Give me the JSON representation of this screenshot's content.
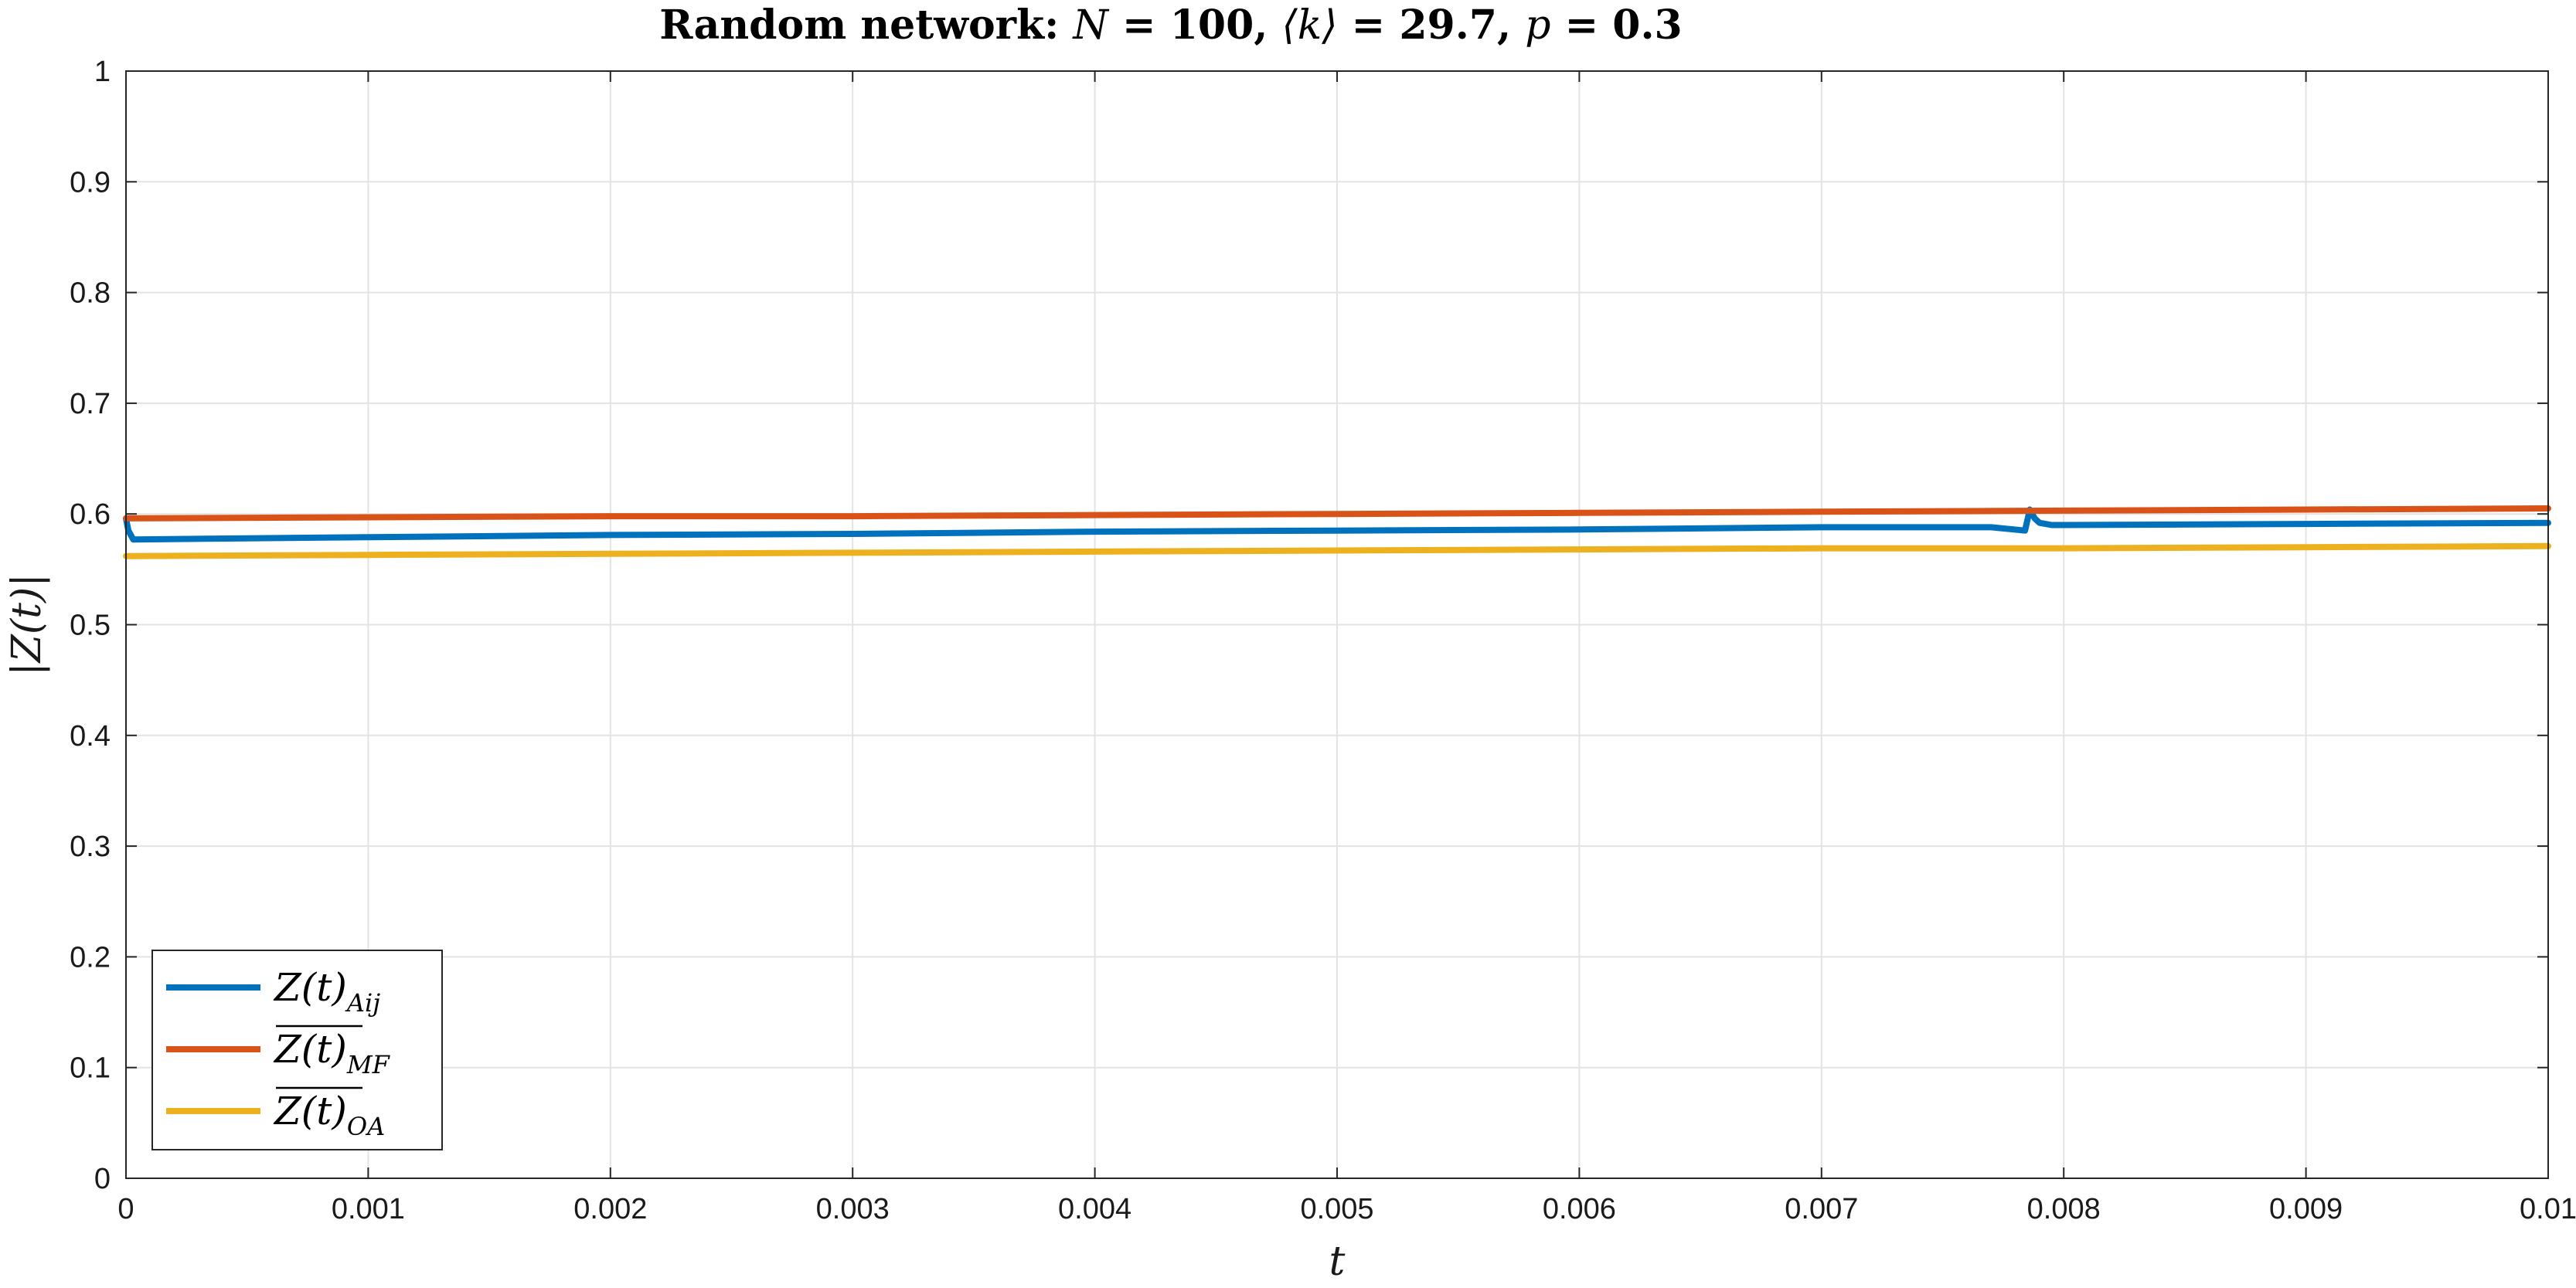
{
  "chart_data": {
    "type": "line",
    "title": {
      "prefix": "Random network: ",
      "n_sym": "N",
      "n_val": " = 100, ",
      "k_sym": "⟨k⟩",
      "k_val": " = 29.7, ",
      "p_sym": "p",
      "p_val": " = 0.3"
    },
    "xlabel": "t",
    "ylabel": "|Z(t)|",
    "xlim": [
      0,
      0.01
    ],
    "ylim": [
      0,
      1
    ],
    "xticks": [
      "0",
      "0.001",
      "0.002",
      "0.003",
      "0.004",
      "0.005",
      "0.006",
      "0.007",
      "0.008",
      "0.009",
      "0.01"
    ],
    "yticks": [
      "0",
      "0.1",
      "0.2",
      "0.3",
      "0.4",
      "0.5",
      "0.6",
      "0.7",
      "0.8",
      "0.9",
      "1"
    ],
    "grid": true,
    "legend_position": "bottom-left",
    "series": [
      {
        "name": "Z(t)",
        "sub": "Aij",
        "overline": false,
        "color": "#0072BD",
        "x": [
          0,
          1e-05,
          3e-05,
          0.0005,
          0.001,
          0.002,
          0.003,
          0.004,
          0.005,
          0.006,
          0.007,
          0.0077,
          0.00784,
          0.00786,
          0.00788,
          0.0079,
          0.00795,
          0.008,
          0.009,
          0.01
        ],
        "y": [
          0.596,
          0.585,
          0.577,
          0.578,
          0.579,
          0.581,
          0.582,
          0.584,
          0.585,
          0.586,
          0.588,
          0.588,
          0.585,
          0.604,
          0.596,
          0.592,
          0.59,
          0.59,
          0.591,
          0.592
        ]
      },
      {
        "name": "Z(t)",
        "sub": "MF",
        "overline": true,
        "color": "#D95319",
        "x": [
          0,
          0.001,
          0.002,
          0.003,
          0.004,
          0.005,
          0.006,
          0.007,
          0.008,
          0.009,
          0.01
        ],
        "y": [
          0.596,
          0.597,
          0.598,
          0.598,
          0.599,
          0.6,
          0.601,
          0.602,
          0.603,
          0.604,
          0.605
        ]
      },
      {
        "name": "Z(t)",
        "sub": "OA",
        "overline": true,
        "color": "#EDB120",
        "x": [
          0,
          0.001,
          0.002,
          0.003,
          0.004,
          0.005,
          0.006,
          0.007,
          0.008,
          0.009,
          0.01
        ],
        "y": [
          0.562,
          0.563,
          0.564,
          0.565,
          0.566,
          0.567,
          0.568,
          0.569,
          0.569,
          0.57,
          0.571
        ]
      }
    ]
  }
}
